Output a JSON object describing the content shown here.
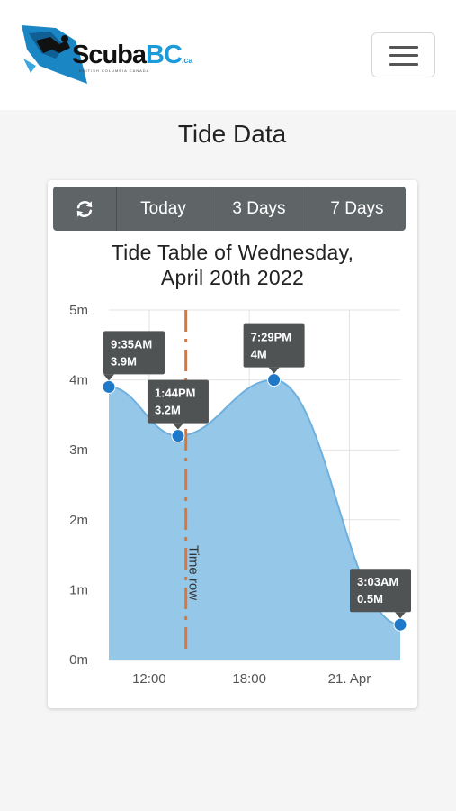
{
  "header": {
    "logo_text_main": "Scuba",
    "logo_text_accent": "BC",
    "logo_text_suffix": ".ca",
    "logo_tagline": "BRITISH COLUMBIA CANADA",
    "menu_icon": "hamburger-icon"
  },
  "page": {
    "title": "Tide Data"
  },
  "controls": {
    "refresh_icon": "refresh-icon",
    "today_label": "Today",
    "three_days_label": "3 Days",
    "seven_days_label": "7 Days"
  },
  "colors": {
    "area_fill": "#8fc4e8",
    "line": "#6fb0de",
    "points": "#1f78c8",
    "time_row": "#d9773a",
    "label_bg": "#4f5354",
    "button_bg": "#5f6566"
  },
  "chart_data": {
    "type": "area",
    "title_line1": "Tide Table of Wednesday,",
    "title_line2": "April 20th 2022",
    "ylabel": "",
    "xlabel": "",
    "ylim": [
      0,
      5
    ],
    "y_ticks": [
      "0m",
      "1m",
      "2m",
      "3m",
      "4m",
      "5m"
    ],
    "x_ticks": [
      {
        "label": "12:00",
        "hour": 12
      },
      {
        "label": "18:00",
        "hour": 18
      },
      {
        "label": "21. Apr",
        "hour": 24
      }
    ],
    "x_range_hours": [
      9.58,
      27.05
    ],
    "grid": true,
    "points": [
      {
        "hour": 9.58,
        "value": 3.9,
        "time_label": "9:35AM",
        "value_label": "3.9M"
      },
      {
        "hour": 13.73,
        "value": 3.2,
        "time_label": "1:44PM",
        "value_label": "3.2M"
      },
      {
        "hour": 19.48,
        "value": 4.0,
        "time_label": "7:29PM",
        "value_label": "4M"
      },
      {
        "hour": 27.05,
        "value": 0.5,
        "time_label": "3:03AM",
        "value_label": "0.5M"
      }
    ],
    "plot_line": {
      "hour": 14.2,
      "label": "Time row"
    }
  }
}
